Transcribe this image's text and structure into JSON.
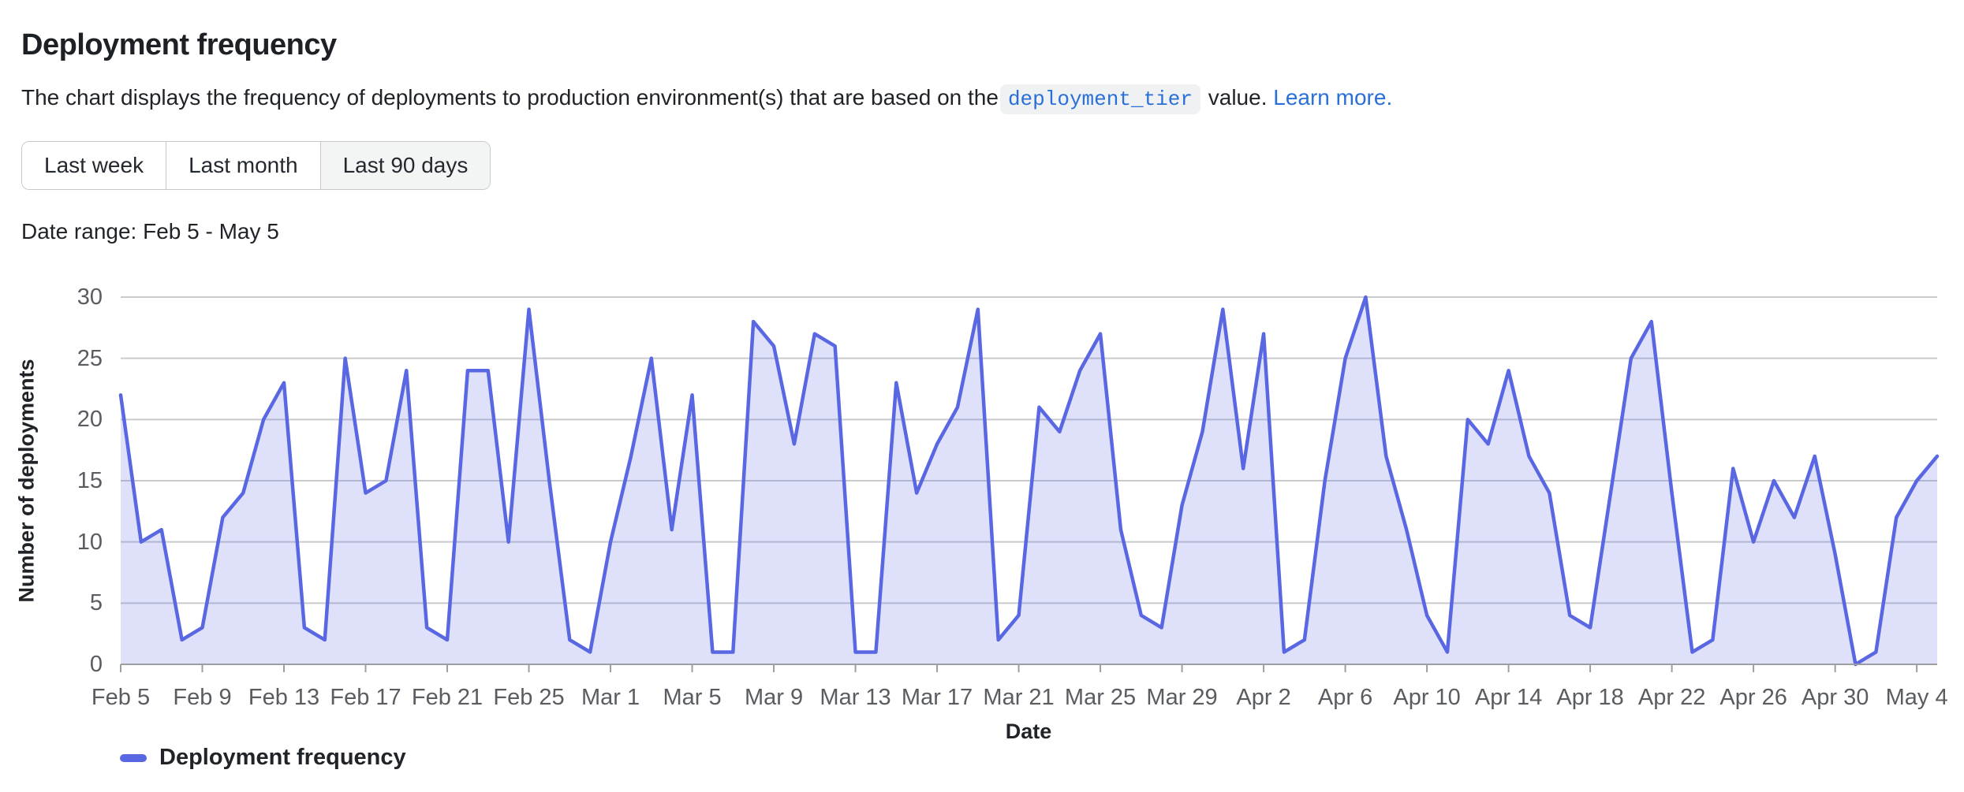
{
  "page": {
    "title": "Deployment frequency",
    "description_prefix": "The chart displays the frequency of deployments to production environment(s) that are based on the",
    "code_token": "deployment_tier",
    "description_suffix": " value. ",
    "learn_more_label": "Learn more.",
    "date_range": "Date range: Feb 5 - May 5"
  },
  "buttons": [
    {
      "label": "Last week",
      "selected": false
    },
    {
      "label": "Last month",
      "selected": false
    },
    {
      "label": "Last 90 days",
      "selected": true
    }
  ],
  "colors": {
    "line": "#5a67e2",
    "area_fill": "rgba(90,103,226,0.2)",
    "gridline": "#c9cbcd",
    "axis_line": "#9b9fa3",
    "axis_text": "#595c60",
    "link_blue": "#2a6fd8",
    "text_dark": "#1f2328"
  },
  "chart_data": {
    "type": "area",
    "title": "",
    "xlabel": "Date",
    "ylabel": "Number of deployments",
    "legend": "Deployment frequency",
    "legend_position": "bottom-left",
    "grid": true,
    "ylim": [
      0,
      30
    ],
    "yticks": [
      0,
      5,
      10,
      15,
      20,
      25,
      30
    ],
    "x_tick_every": 4,
    "x": [
      "Feb 5",
      "Feb 6",
      "Feb 7",
      "Feb 8",
      "Feb 9",
      "Feb 10",
      "Feb 11",
      "Feb 12",
      "Feb 13",
      "Feb 14",
      "Feb 15",
      "Feb 16",
      "Feb 17",
      "Feb 18",
      "Feb 19",
      "Feb 20",
      "Feb 21",
      "Feb 22",
      "Feb 23",
      "Feb 24",
      "Feb 25",
      "Feb 26",
      "Feb 27",
      "Feb 28",
      "Mar 1",
      "Mar 2",
      "Mar 3",
      "Mar 4",
      "Mar 5",
      "Mar 6",
      "Mar 7",
      "Mar 8",
      "Mar 9",
      "Mar 10",
      "Mar 11",
      "Mar 12",
      "Mar 13",
      "Mar 14",
      "Mar 15",
      "Mar 16",
      "Mar 17",
      "Mar 18",
      "Mar 19",
      "Mar 20",
      "Mar 21",
      "Mar 22",
      "Mar 23",
      "Mar 24",
      "Mar 25",
      "Mar 26",
      "Mar 27",
      "Mar 28",
      "Mar 29",
      "Mar 30",
      "Mar 31",
      "Apr 1",
      "Apr 2",
      "Apr 3",
      "Apr 4",
      "Apr 5",
      "Apr 6",
      "Apr 7",
      "Apr 8",
      "Apr 9",
      "Apr 10",
      "Apr 11",
      "Apr 12",
      "Apr 13",
      "Apr 14",
      "Apr 15",
      "Apr 16",
      "Apr 17",
      "Apr 18",
      "Apr 19",
      "Apr 20",
      "Apr 21",
      "Apr 22",
      "Apr 23",
      "Apr 24",
      "Apr 25",
      "Apr 26",
      "Apr 27",
      "Apr 28",
      "Apr 29",
      "Apr 30",
      "May 1",
      "May 2",
      "May 3",
      "May 4",
      "May 5"
    ],
    "values": [
      22,
      10,
      11,
      2,
      3,
      12,
      14,
      20,
      23,
      3,
      2,
      25,
      14,
      15,
      24,
      3,
      2,
      24,
      24,
      10,
      29,
      15,
      2,
      1,
      10,
      17,
      25,
      11,
      22,
      1,
      1,
      28,
      26,
      18,
      27,
      26,
      1,
      1,
      23,
      14,
      18,
      21,
      29,
      2,
      4,
      21,
      19,
      24,
      27,
      11,
      4,
      3,
      13,
      19,
      29,
      16,
      27,
      1,
      2,
      15,
      25,
      30,
      17,
      11,
      4,
      1,
      20,
      18,
      24,
      17,
      14,
      4,
      3,
      14,
      25,
      28,
      14,
      1,
      2,
      16,
      10,
      15,
      12,
      17,
      9,
      0,
      1,
      12,
      15,
      17
    ]
  }
}
